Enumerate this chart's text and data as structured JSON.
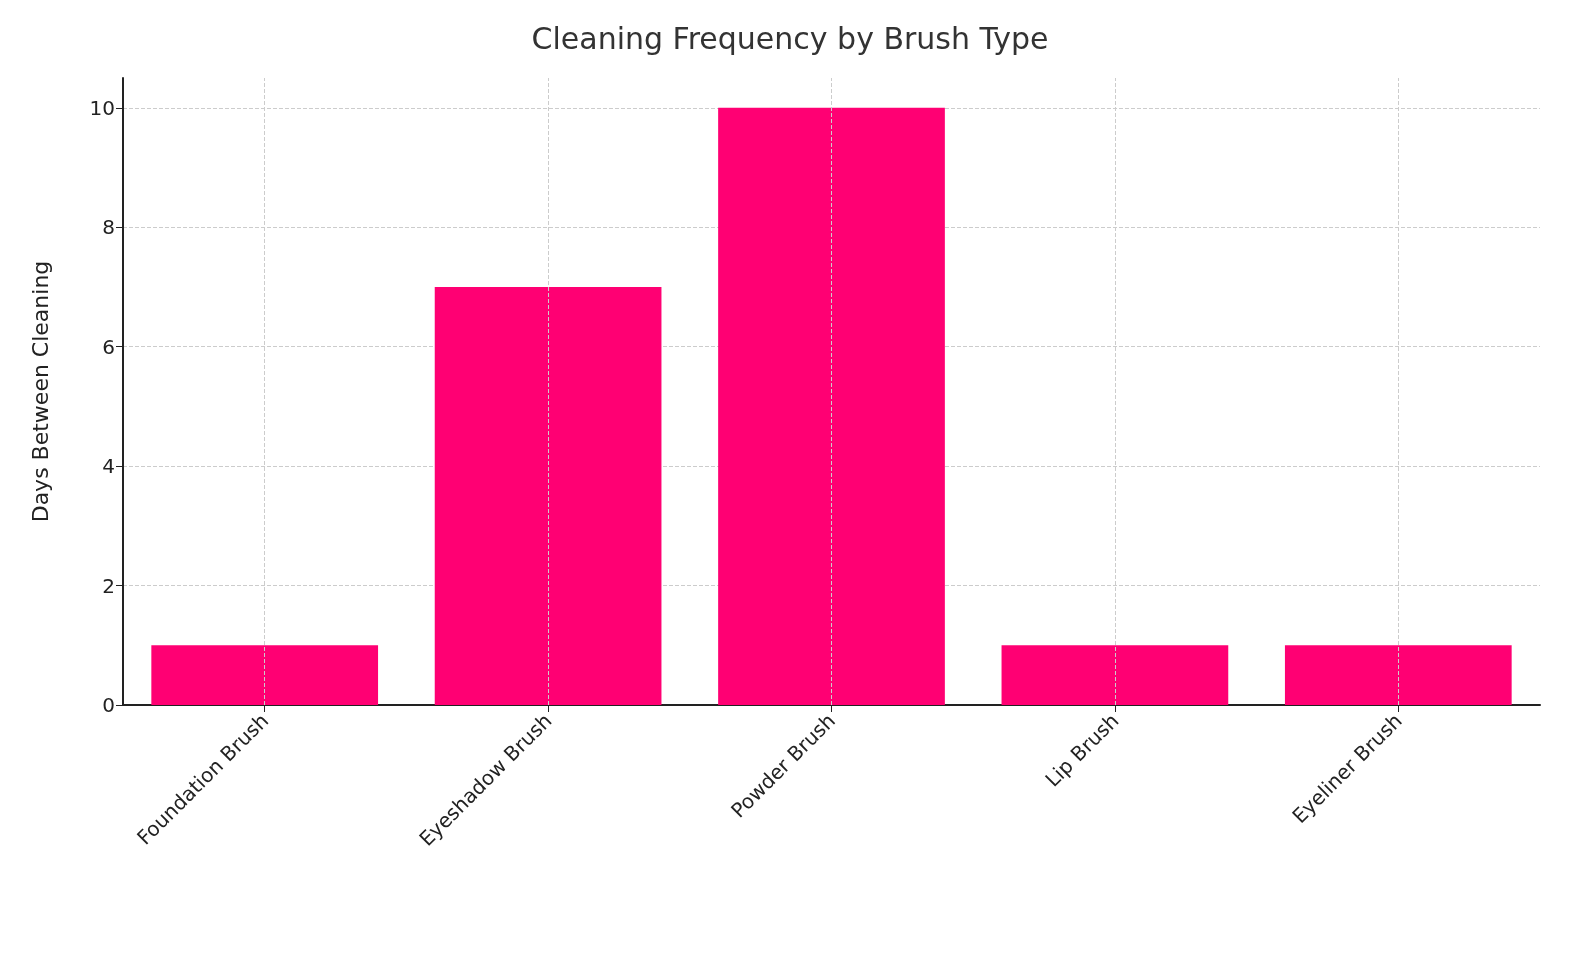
{
  "chart_data": {
    "type": "bar",
    "title": "Cleaning Frequency by Brush Type",
    "ylabel": "Days Between Cleaning",
    "categories": [
      "Foundation Brush",
      "Eyeshadow Brush",
      "Powder Brush",
      "Lip Brush",
      "Eyeliner Brush"
    ],
    "values": [
      1,
      7,
      10,
      1,
      1
    ],
    "color": "#ff0073",
    "ylim": [
      0,
      10.5
    ],
    "yticks": [
      0,
      2,
      4,
      6,
      8,
      10
    ],
    "grid": true
  }
}
